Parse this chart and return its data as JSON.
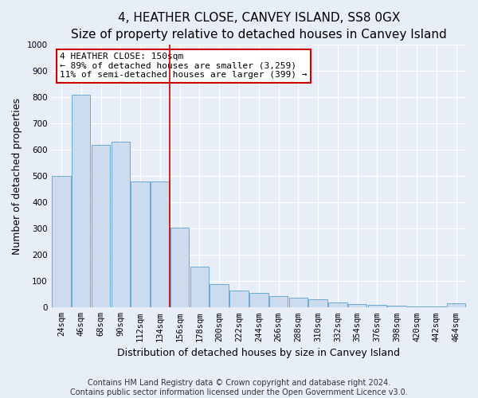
{
  "title": "4, HEATHER CLOSE, CANVEY ISLAND, SS8 0GX",
  "subtitle": "Size of property relative to detached houses in Canvey Island",
  "xlabel": "Distribution of detached houses by size in Canvey Island",
  "ylabel": "Number of detached properties",
  "categories": [
    "24sqm",
    "46sqm",
    "68sqm",
    "90sqm",
    "112sqm",
    "134sqm",
    "156sqm",
    "178sqm",
    "200sqm",
    "222sqm",
    "244sqm",
    "266sqm",
    "288sqm",
    "310sqm",
    "332sqm",
    "354sqm",
    "376sqm",
    "398sqm",
    "420sqm",
    "442sqm",
    "464sqm"
  ],
  "values": [
    500,
    810,
    620,
    630,
    480,
    480,
    305,
    155,
    90,
    65,
    55,
    42,
    38,
    32,
    18,
    14,
    10,
    7,
    5,
    4,
    15
  ],
  "bar_color": "#ccdcee",
  "bar_edge_color": "#6aaad4",
  "marker_index": 6,
  "marker_color": "#cc0000",
  "annotation_text": "4 HEATHER CLOSE: 150sqm\n← 89% of detached houses are smaller (3,259)\n11% of semi-detached houses are larger (399) →",
  "annotation_box_color": "#cc0000",
  "ylim": [
    0,
    1000
  ],
  "yticks": [
    0,
    100,
    200,
    300,
    400,
    500,
    600,
    700,
    800,
    900,
    1000
  ],
  "footer_line1": "Contains HM Land Registry data © Crown copyright and database right 2024.",
  "footer_line2": "Contains public sector information licensed under the Open Government Licence v3.0.",
  "bg_color": "#e8eef8",
  "plot_bg_color": "#e8eef8",
  "grid_color": "#ffffff",
  "title_fontsize": 11,
  "axis_label_fontsize": 9,
  "tick_fontsize": 7.5,
  "footer_fontsize": 7,
  "annot_fontsize": 8
}
